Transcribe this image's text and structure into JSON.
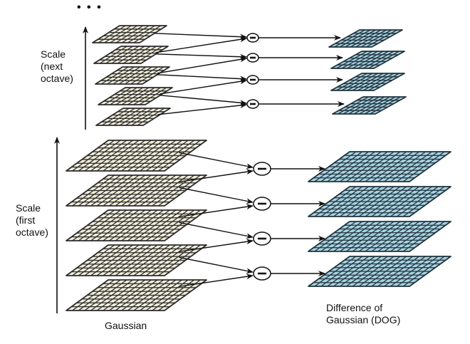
{
  "ellipsis": "• • •",
  "labels": {
    "next_octave": [
      "Scale",
      "(next",
      "octave)"
    ],
    "first_octave": [
      "Scale",
      "(first",
      "octave)"
    ],
    "gaussian": "Gaussian",
    "dog": [
      "Difference of",
      "Gaussian (DOG)"
    ]
  },
  "colors": {
    "gaussian_fill": "#f2eedc",
    "dog_fill": "#a8d3e2",
    "grid_line": "#2b2b2b",
    "dog_grid_line": "#22333d"
  },
  "operator_symbol": "minus"
}
